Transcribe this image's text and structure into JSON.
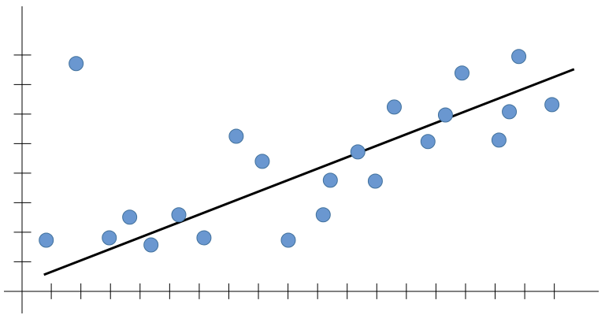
{
  "chart_data": {
    "type": "scatter",
    "x": [
      0.83,
      1.84,
      2.96,
      3.65,
      4.37,
      5.31,
      6.16,
      7.25,
      8.13,
      9.01,
      10.19,
      10.43,
      11.36,
      11.95,
      12.59,
      13.73,
      14.32,
      14.88,
      16.13,
      16.48,
      16.8,
      17.92
    ],
    "series": [
      {
        "color": "#6a97d0",
        "values": [
          1.73,
          7.71,
          1.81,
          2.51,
          1.57,
          2.59,
          1.81,
          5.25,
          4.4,
          1.73,
          2.59,
          3.76,
          4.72,
          3.73,
          6.24,
          5.07,
          5.97,
          7.39,
          5.12,
          6.08,
          7.95,
          6.32
        ]
      }
    ],
    "trendline": {
      "color": "#000000",
      "x": [
        0.75,
        18.67
      ],
      "values": [
        0.56,
        7.52
      ]
    },
    "xlim": [
      -0.6,
      19.5
    ],
    "ylim": [
      -0.75,
      9.65
    ],
    "xticks": [
      1,
      2,
      3,
      4,
      5,
      6,
      7,
      8,
      9,
      10,
      11,
      12,
      13,
      14,
      15,
      16,
      17,
      18
    ],
    "yticks": [
      1,
      2,
      3,
      4,
      5,
      6,
      7,
      8
    ]
  }
}
